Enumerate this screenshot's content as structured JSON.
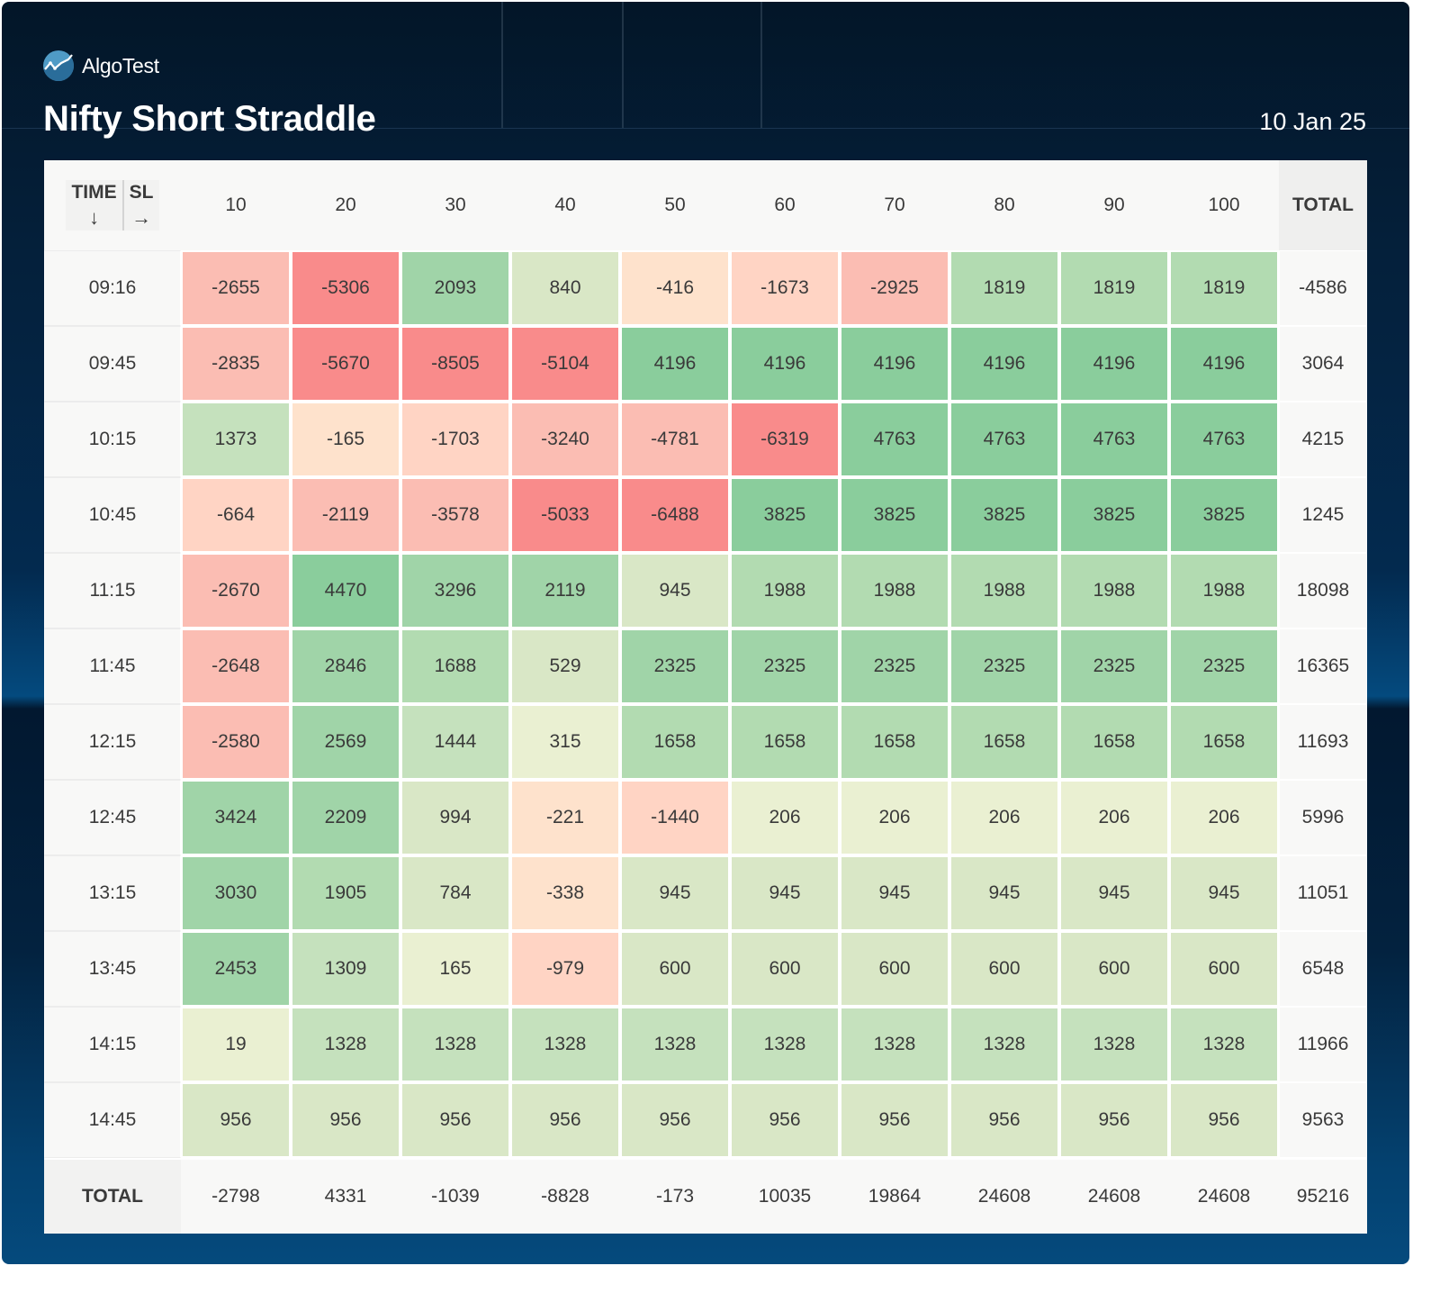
{
  "brand": {
    "name": "AlgoTest",
    "icon": "algotest-chart-logo-icon"
  },
  "header": {
    "title": "Nifty Short Straddle",
    "date": "10 Jan 25"
  },
  "table": {
    "corner": {
      "time_label": "TIME",
      "time_arrow": "↓",
      "sl_label": "SL",
      "sl_arrow": "→"
    },
    "columns": [
      "10",
      "20",
      "30",
      "40",
      "50",
      "60",
      "70",
      "80",
      "90",
      "100"
    ],
    "total_label": "TOTAL",
    "rows": [
      {
        "time": "09:16",
        "values": [
          -2655,
          -5306,
          2093,
          840,
          -416,
          -1673,
          -2925,
          1819,
          1819,
          1819
        ],
        "total": "-4586"
      },
      {
        "time": "09:45",
        "values": [
          -2835,
          -5670,
          -8505,
          -5104,
          4196,
          4196,
          4196,
          4196,
          4196,
          4196
        ],
        "total": "3064"
      },
      {
        "time": "10:15",
        "values": [
          1373,
          -165,
          -1703,
          -3240,
          -4781,
          -6319,
          4763,
          4763,
          4763,
          4763
        ],
        "total": "4215"
      },
      {
        "time": "10:45",
        "values": [
          -664,
          -2119,
          -3578,
          -5033,
          -6488,
          3825,
          3825,
          3825,
          3825,
          3825
        ],
        "total": "1245"
      },
      {
        "time": "11:15",
        "values": [
          -2670,
          4470,
          3296,
          2119,
          945,
          1988,
          1988,
          1988,
          1988,
          1988
        ],
        "total": "18098"
      },
      {
        "time": "11:45",
        "values": [
          -2648,
          2846,
          1688,
          529,
          2325,
          2325,
          2325,
          2325,
          2325,
          2325
        ],
        "total": "16365"
      },
      {
        "time": "12:15",
        "values": [
          -2580,
          2569,
          1444,
          315,
          1658,
          1658,
          1658,
          1658,
          1658,
          1658
        ],
        "total": "11693"
      },
      {
        "time": "12:45",
        "values": [
          3424,
          2209,
          994,
          -221,
          -1440,
          206,
          206,
          206,
          206,
          206
        ],
        "total": "5996"
      },
      {
        "time": "13:15",
        "values": [
          3030,
          1905,
          784,
          -338,
          945,
          945,
          945,
          945,
          945,
          945
        ],
        "total": "11051"
      },
      {
        "time": "13:45",
        "values": [
          2453,
          1309,
          165,
          -979,
          600,
          600,
          600,
          600,
          600,
          600
        ],
        "total": "6548"
      },
      {
        "time": "14:15",
        "values": [
          19,
          1328,
          1328,
          1328,
          1328,
          1328,
          1328,
          1328,
          1328,
          1328
        ],
        "total": "11966"
      },
      {
        "time": "14:45",
        "values": [
          956,
          956,
          956,
          956,
          956,
          956,
          956,
          956,
          956,
          956
        ],
        "total": "9563"
      }
    ],
    "column_totals": [
      "-2798",
      "4331",
      "-1039",
      "-8828",
      "-173",
      "10035",
      "19864",
      "24608",
      "24608",
      "24608"
    ],
    "grand_total": "95216"
  },
  "colors": {
    "neg_strong": "#f98b8b",
    "neg_mid": "#fbbdb3",
    "neg_light": "#fee2cc",
    "pos_light": "#eaf0d2",
    "pos_mid": "#b2dbb1",
    "pos_strong": "#8acd9c"
  }
}
